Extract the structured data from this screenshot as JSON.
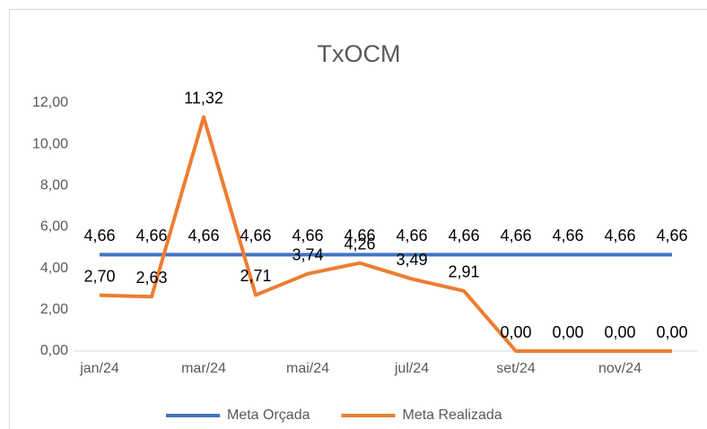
{
  "chart_data": {
    "type": "line",
    "title": "TxOCM",
    "categories": [
      "jan/24",
      null,
      "mar/24",
      null,
      "mai/24",
      null,
      "jul/24",
      null,
      "set/24",
      null,
      "nov/24",
      null
    ],
    "series": [
      {
        "name": "Meta Orçada",
        "color": "#4472c4",
        "values": [
          4.66,
          4.66,
          4.66,
          4.66,
          4.66,
          4.66,
          4.66,
          4.66,
          4.66,
          4.66,
          4.66,
          4.66
        ],
        "value_labels": [
          "4,66",
          "4,66",
          "4,66",
          "4,66",
          "4,66",
          "4,66",
          "4,66",
          "4,66",
          "4,66",
          "4,66",
          "4,66",
          "4,66"
        ]
      },
      {
        "name": "Meta Realizada",
        "color": "#ed7d31",
        "values": [
          2.7,
          2.63,
          11.32,
          2.71,
          3.74,
          4.26,
          3.49,
          2.91,
          0,
          0,
          0,
          0
        ],
        "value_labels": [
          "2,70",
          "2,63",
          "11,32",
          "2,71",
          "3,74",
          "4,26",
          "3,49",
          "2,91",
          "0,00",
          "0,00",
          "0,00",
          "0,00"
        ]
      }
    ],
    "ylim": [
      0,
      12
    ],
    "yticks": [
      {
        "value": 0,
        "label": "0,00"
      },
      {
        "value": 2,
        "label": "2,00"
      },
      {
        "value": 4,
        "label": "4,00"
      },
      {
        "value": 6,
        "label": "6,00"
      },
      {
        "value": 8,
        "label": "8,00"
      },
      {
        "value": 10,
        "label": "10,00"
      },
      {
        "value": 12,
        "label": "12,00"
      }
    ],
    "grid": false,
    "legend": "bottom"
  }
}
